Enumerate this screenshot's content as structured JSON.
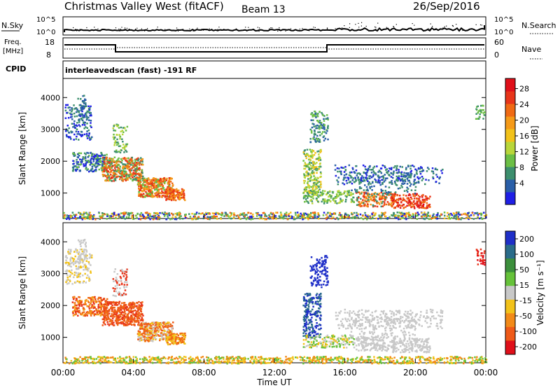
{
  "header": {
    "title": "Christmas Valley West (fitACF)",
    "beam": "Beam 13",
    "date": "26/Sep/2016"
  },
  "top_panels": {
    "nsky_label": "N.Sky",
    "nsky_ticks": [
      "10^5",
      "10^0"
    ],
    "nsearch_label": "N.Search",
    "nsearch_ticks": [
      "10^5",
      "10^0"
    ],
    "freq_label": "Freq.",
    "freq_unit": "[MHz]",
    "freq_ticks": [
      "18",
      "8"
    ],
    "nave_label": "Nave",
    "nave_ticks": [
      "60",
      "0"
    ],
    "cpid_label": "CPID",
    "cpid_text": "interleavedscan (fast) -191 RF"
  },
  "chart_data": [
    {
      "type": "heatmap",
      "panel": "power",
      "ylabel": "Slant Range [km]",
      "xlabel": "",
      "yticks": [
        "1000",
        "2000",
        "3000",
        "4000"
      ],
      "ylim": [
        200,
        4600
      ],
      "xlim_hours": [
        0,
        24
      ],
      "colorbar_label": "Power [dB]",
      "colorbar_ticks": [
        "4",
        "8",
        "12",
        "16",
        "20",
        "24",
        "28"
      ],
      "colorbar_colors": [
        "#1f1fe6",
        "#2a5fa8",
        "#3d8f6e",
        "#6cbf45",
        "#b9d63a",
        "#f2c21a",
        "#f59a18",
        "#f06a14",
        "#e8351a",
        "#e0101a"
      ]
    },
    {
      "type": "heatmap",
      "panel": "velocity",
      "ylabel": "Slant Range [km]",
      "xlabel": "Time UT",
      "yticks": [
        "1000",
        "2000",
        "3000",
        "4000"
      ],
      "xticks": [
        "00:00",
        "04:00",
        "08:00",
        "12:00",
        "16:00",
        "20:00",
        "00:00"
      ],
      "ylim": [
        200,
        4600
      ],
      "xlim_hours": [
        0,
        24
      ],
      "colorbar_label": "Velocity [m s⁻¹]",
      "colorbar_ticks": [
        "200",
        "100",
        "50",
        "15",
        "-15",
        "-50",
        "-100",
        "-200"
      ],
      "colorbar_colors": [
        "#1f2fc8",
        "#2a6c8a",
        "#3c8f3c",
        "#66c23a",
        "#c8c8c8",
        "#f2c21a",
        "#f28a18",
        "#ef5a18",
        "#e0101a"
      ]
    }
  ],
  "scatter_regions": [
    {
      "t0": 0.1,
      "t1": 1.6,
      "r0": 2700,
      "r1": 3800,
      "p": [
        "#1f1fe6",
        "#2a5fa8",
        "#3d8f6e"
      ],
      "v": [
        "#c8c8c8",
        "#f2c21a"
      ],
      "n": 160
    },
    {
      "t0": 0.8,
      "t1": 1.3,
      "r0": 3300,
      "r1": 4100,
      "p": [
        "#2a5fa8",
        "#3d8f6e"
      ],
      "v": [
        "#c8c8c8"
      ],
      "n": 40
    },
    {
      "t0": 0.5,
      "t1": 2.5,
      "r0": 1700,
      "r1": 2300,
      "p": [
        "#1f1fe6",
        "#2a5fa8",
        "#3d8f6e",
        "#6cbf45"
      ],
      "v": [
        "#f06a14",
        "#e8351a",
        "#f59a18"
      ],
      "n": 220
    },
    {
      "t0": 2.2,
      "t1": 4.5,
      "r0": 1400,
      "r1": 2150,
      "p": [
        "#3d8f6e",
        "#6cbf45",
        "#f59a18",
        "#f06a14",
        "#e8351a"
      ],
      "v": [
        "#e8351a",
        "#ef5a18",
        "#f06a14"
      ],
      "n": 420
    },
    {
      "t0": 4.2,
      "t1": 6.2,
      "r0": 900,
      "r1": 1500,
      "p": [
        "#6cbf45",
        "#f59a18",
        "#f06a14",
        "#e8351a"
      ],
      "v": [
        "#f06a14",
        "#ef5a18",
        "#f2c21a",
        "#c8c8c8"
      ],
      "n": 360
    },
    {
      "t0": 5.8,
      "t1": 6.9,
      "r0": 800,
      "r1": 1150,
      "p": [
        "#f06a14",
        "#e8351a",
        "#f59a18"
      ],
      "v": [
        "#f2c21a",
        "#f06a14"
      ],
      "n": 120
    },
    {
      "t0": 2.8,
      "t1": 3.6,
      "r0": 2300,
      "r1": 3200,
      "p": [
        "#6cbf45",
        "#b9d63a",
        "#3d8f6e"
      ],
      "v": [
        "#e8351a",
        "#c8c8c8"
      ],
      "n": 70
    },
    {
      "t0": 13.6,
      "t1": 14.6,
      "r0": 1000,
      "r1": 2400,
      "p": [
        "#3d8f6e",
        "#6cbf45",
        "#b9d63a",
        "#f2c21a"
      ],
      "v": [
        "#1f2fc8",
        "#2a6c8a"
      ],
      "n": 220
    },
    {
      "t0": 14.0,
      "t1": 15.0,
      "r0": 2600,
      "r1": 3600,
      "p": [
        "#2a5fa8",
        "#3d8f6e",
        "#6cbf45"
      ],
      "v": [
        "#1f2fc8"
      ],
      "n": 110
    },
    {
      "t0": 13.6,
      "t1": 16.5,
      "r0": 700,
      "r1": 1100,
      "p": [
        "#3d8f6e",
        "#6cbf45",
        "#b9d63a"
      ],
      "v": [
        "#f2c21a",
        "#c8c8c8",
        "#66c23a"
      ],
      "n": 160
    },
    {
      "t0": 15.4,
      "t1": 21.5,
      "r0": 1300,
      "r1": 1900,
      "p": [
        "#1f1fe6",
        "#2a5fa8",
        "#3d8f6e"
      ],
      "v": [
        "#c8c8c8"
      ],
      "n": 260
    },
    {
      "t0": 16.6,
      "t1": 18.8,
      "r0": 600,
      "r1": 1050,
      "p": [
        "#f06a14",
        "#e8351a",
        "#f59a18",
        "#3d8f6e"
      ],
      "v": [
        "#c8c8c8"
      ],
      "n": 170
    },
    {
      "t0": 18.6,
      "t1": 20.8,
      "r0": 550,
      "r1": 1000,
      "p": [
        "#e8351a",
        "#f06a14",
        "#e0101a"
      ],
      "v": [
        "#c8c8c8"
      ],
      "n": 170
    },
    {
      "t0": 16.2,
      "t1": 20.0,
      "r0": 1000,
      "r1": 1700,
      "p": [
        "#2a5fa8",
        "#3d8f6e"
      ],
      "v": [
        "#c8c8c8"
      ],
      "n": 140
    },
    {
      "t0": 23.4,
      "t1": 23.9,
      "r0": 3300,
      "r1": 3800,
      "p": [
        "#6cbf45",
        "#3d8f6e"
      ],
      "v": [
        "#e0101a",
        "#e8351a"
      ],
      "n": 30
    },
    {
      "t0": 0,
      "t1": 24,
      "r0": 200,
      "r1": 420,
      "p": [
        "#1f1fe6",
        "#3d8f6e",
        "#f2c21a",
        "#f06a14",
        "#6cbf45"
      ],
      "v": [
        "#f2c21a",
        "#66c23a",
        "#f28a18"
      ],
      "n": 900
    }
  ]
}
